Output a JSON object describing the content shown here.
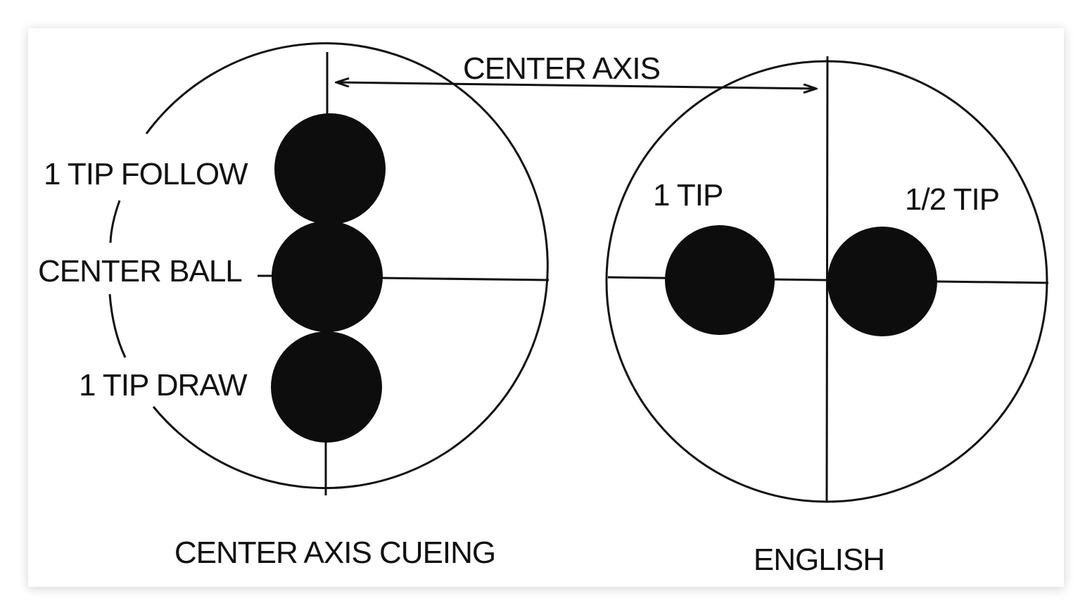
{
  "diagram": {
    "left_panel": {
      "caption": "CENTER AXIS CUEING",
      "labels": {
        "follow": "1 TIP FOLLOW",
        "center": "CENTER BALL",
        "draw": "1 TIP DRAW"
      }
    },
    "right_panel": {
      "caption": "ENGLISH",
      "labels": {
        "one_tip": "1 TIP",
        "half_tip": "1/2 TIP"
      }
    },
    "top_label": "CENTER AXIS"
  },
  "colors": {
    "ink": "#111111",
    "background": "#ffffff"
  }
}
